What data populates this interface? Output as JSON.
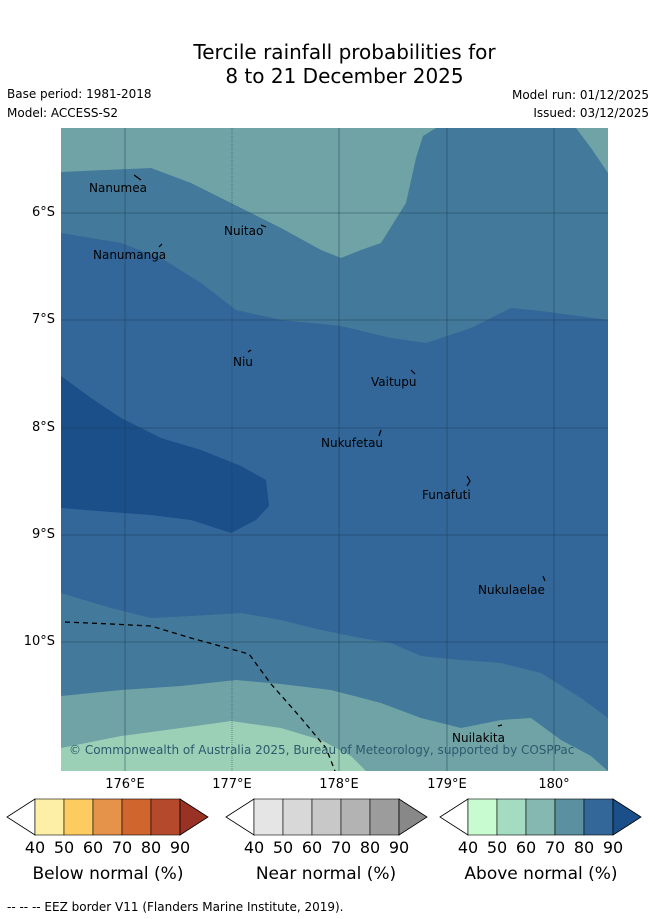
{
  "title_line1": "Tercile rainfall probabilities for",
  "title_line2": "8 to 21 December 2025",
  "base_period": "Base period: 1981-2018",
  "model": "Model: ACCESS-S2",
  "model_run": "Model run: 01/12/2025",
  "issued": "Issued: 03/12/2025",
  "lat_labels": [
    "6°S",
    "7°S",
    "8°S",
    "9°S",
    "10°S"
  ],
  "lon_labels": [
    "176°E",
    "177°E",
    "178°E",
    "179°E",
    "180°"
  ],
  "places": [
    {
      "name": "Nanumea"
    },
    {
      "name": "Nuitao"
    },
    {
      "name": "Nanumanga"
    },
    {
      "name": "Niu"
    },
    {
      "name": "Vaitupu"
    },
    {
      "name": "Nukufetau"
    },
    {
      "name": "Funafuti"
    },
    {
      "name": "Nukulaelae"
    },
    {
      "name": "Nuilakita"
    }
  ],
  "copyright": "© Commonwealth of Australia 2025, Bureau of Meteorology, supported by COSPPac",
  "colorbars": [
    {
      "label": "Below normal (%)",
      "ticks": [
        "40",
        "50",
        "60",
        "70",
        "80",
        "90"
      ],
      "colors": [
        "#fdf0a6",
        "#fdcc60",
        "#e5924a",
        "#d0652e",
        "#b44a2b",
        "#993224"
      ]
    },
    {
      "label": "Near normal (%)",
      "ticks": [
        "40",
        "50",
        "60",
        "70",
        "80",
        "90"
      ],
      "colors": [
        "#e5e5e5",
        "#d8d8d8",
        "#c8c8c8",
        "#b3b3b3",
        "#9c9c9c",
        "#888888"
      ]
    },
    {
      "label": "Above normal (%)",
      "ticks": [
        "40",
        "50",
        "60",
        "70",
        "80",
        "90"
      ],
      "colors": [
        "#c9fbd0",
        "#a4dcc2",
        "#84b8b0",
        "#5a90a0",
        "#336699",
        "#1a4f8a"
      ]
    }
  ],
  "footer": "--  --  -- EEZ border V11 (Flanders Marine Institute, 2019).",
  "colors": {
    "band_60": "#84b8b0",
    "band_70": "#5a90a0",
    "band_80": "#336699",
    "band_90": "#1a4f8a",
    "band_50": "#a4dcc2"
  }
}
